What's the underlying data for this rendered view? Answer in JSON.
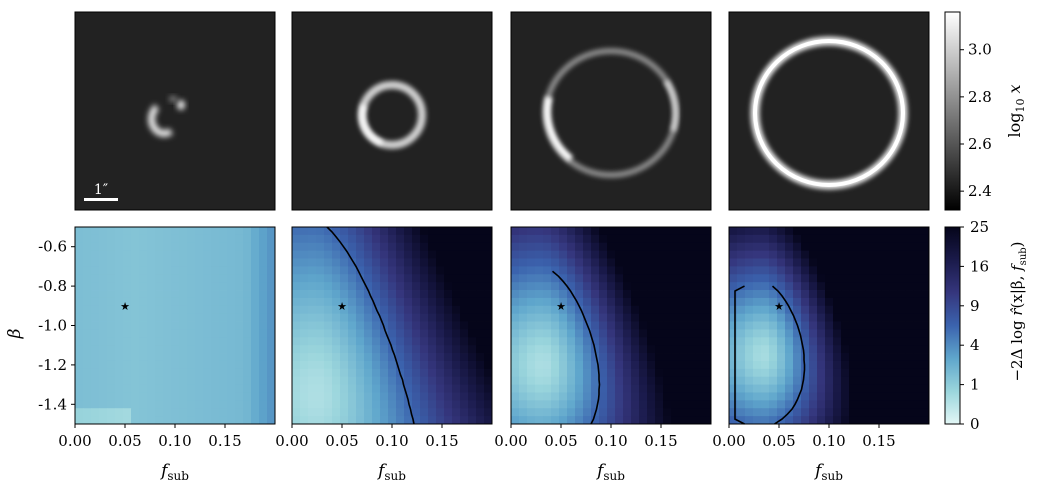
{
  "figure": {
    "scale_bar_label": "1″",
    "star_marker": "★"
  },
  "chart_data": [
    {
      "type": "heatmap",
      "panel": "image-colorbar",
      "ylabel": "log10 x",
      "ylabel_parts": {
        "main": "log",
        "sub": "10",
        "var": "x"
      },
      "ylim": [
        2.32,
        3.16
      ],
      "ticks": [
        2.4,
        2.6,
        2.8,
        3.0
      ],
      "tick_labels": [
        "2.4",
        "2.6",
        "2.8",
        "3.0"
      ],
      "colormap": [
        "#000000",
        "#ffffff"
      ],
      "images": [
        {
          "shape": "arc-with-clump"
        },
        {
          "shape": "small-ring"
        },
        {
          "shape": "large-faint-ring"
        },
        {
          "shape": "large-bright-ring"
        }
      ]
    },
    {
      "type": "heatmap",
      "panel": "likelihood-maps",
      "xlabel": "f_sub",
      "xlabel_parts": {
        "main": "f",
        "sub": "sub"
      },
      "ylabel": "β",
      "xlim": [
        0.0,
        0.2
      ],
      "ylim": [
        -1.5,
        -0.5
      ],
      "x_ticks": [
        0.0,
        0.05,
        0.1,
        0.15
      ],
      "x_tick_labels": [
        "0.00",
        "0.05",
        "0.10",
        "0.15"
      ],
      "y_ticks": [
        -0.6,
        -0.8,
        -1.0,
        -1.2,
        -1.4
      ],
      "y_tick_labels": [
        "-0.6",
        "-0.8",
        "-1.0",
        "-1.2",
        "-1.4"
      ],
      "true_value": {
        "f_sub": 0.05,
        "beta": -0.9
      },
      "colorbar": {
        "label": "−2Δ log r̂(x|β, f_sub)",
        "label_parts": {
          "pre": "−2Δ log ",
          "r": "r̂",
          "mid": "(x|β, ",
          "f": "f",
          "sub": "sub",
          "post": ")"
        },
        "range": [
          0,
          25
        ],
        "ticks": [
          0,
          1,
          4,
          9,
          16,
          25
        ],
        "tick_labels": [
          "0",
          "1",
          "4",
          "9",
          "16",
          "25"
        ],
        "scale": "sqrt",
        "colormap": [
          "#e3f7f6",
          "#9ad5dc",
          "#5fa6cc",
          "#3b63ae",
          "#35367d",
          "#1a1a4a",
          "#05051a"
        ]
      },
      "panels": [
        {
          "hot": [
            0.02,
            -1.48
          ],
          "slope": [
            2,
            6
          ],
          "base": 2.0,
          "spread": 0.25,
          "contour_levels": []
        },
        {
          "hot": [
            0.025,
            -1.35
          ],
          "slope": [
            400,
            8
          ],
          "base": 0.9,
          "spread": 0.35,
          "contour_levels": [
            5.99
          ]
        },
        {
          "hot": [
            0.032,
            -1.2
          ],
          "slope": [
            900,
            25
          ],
          "base": 1.0,
          "spread": 0.35,
          "contour_levels": [
            5.99
          ]
        },
        {
          "hot": [
            0.035,
            -1.15
          ],
          "slope": [
            1600,
            45
          ],
          "base": 1.2,
          "spread": 0.3,
          "contour_levels": [
            5.99
          ]
        }
      ]
    }
  ]
}
